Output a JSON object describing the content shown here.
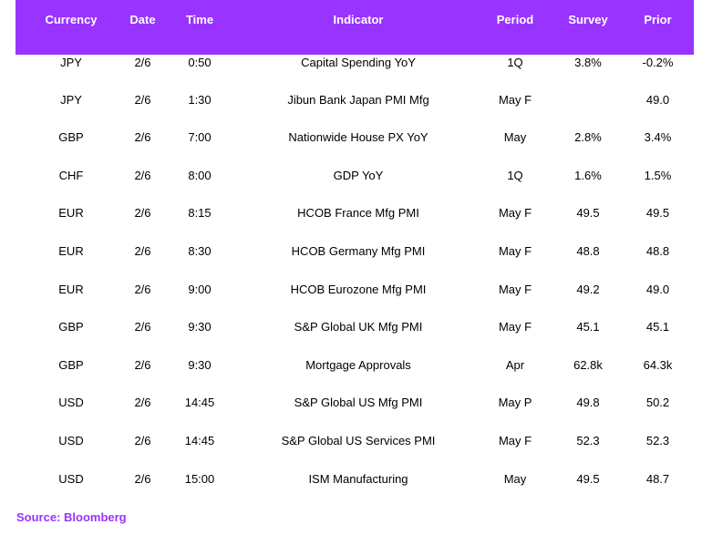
{
  "colors": {
    "header_bg": "#9933ff",
    "source_text": "#9933ff"
  },
  "table": {
    "headers": [
      "Currency",
      "Date",
      "Time",
      "Indicator",
      "Period",
      "Survey",
      "Prior"
    ],
    "rows": [
      [
        "JPY",
        "2/6",
        "0:50",
        "Capital Spending YoY",
        "1Q",
        "3.8%",
        "-0.2%"
      ],
      [
        "JPY",
        "2/6",
        "1:30",
        "Jibun Bank Japan PMI Mfg",
        "May F",
        "",
        "49.0"
      ],
      [
        "GBP",
        "2/6",
        "7:00",
        "Nationwide House PX YoY",
        "May",
        "2.8%",
        "3.4%"
      ],
      [
        "CHF",
        "2/6",
        "8:00",
        "GDP YoY",
        "1Q",
        "1.6%",
        "1.5%"
      ],
      [
        "EUR",
        "2/6",
        "8:15",
        "HCOB France Mfg PMI",
        "May F",
        "49.5",
        "49.5"
      ],
      [
        "EUR",
        "2/6",
        "8:30",
        "HCOB Germany Mfg PMI",
        "May F",
        "48.8",
        "48.8"
      ],
      [
        "EUR",
        "2/6",
        "9:00",
        "HCOB Eurozone Mfg PMI",
        "May F",
        "49.2",
        "49.0"
      ],
      [
        "GBP",
        "2/6",
        "9:30",
        "S&P Global UK Mfg PMI",
        "May F",
        "45.1",
        "45.1"
      ],
      [
        "GBP",
        "2/6",
        "9:30",
        "Mortgage Approvals",
        "Apr",
        "62.8k",
        "64.3k"
      ],
      [
        "USD",
        "2/6",
        "14:45",
        "S&P Global US Mfg PMI",
        "May P",
        "49.8",
        "50.2"
      ],
      [
        "USD",
        "2/6",
        "14:45",
        "S&P Global US Services PMI",
        "May F",
        "52.3",
        "52.3"
      ],
      [
        "USD",
        "2/6",
        "15:00",
        "ISM Manufacturing",
        "May",
        "49.5",
        "48.7"
      ]
    ]
  },
  "source": "Source: Bloomberg"
}
